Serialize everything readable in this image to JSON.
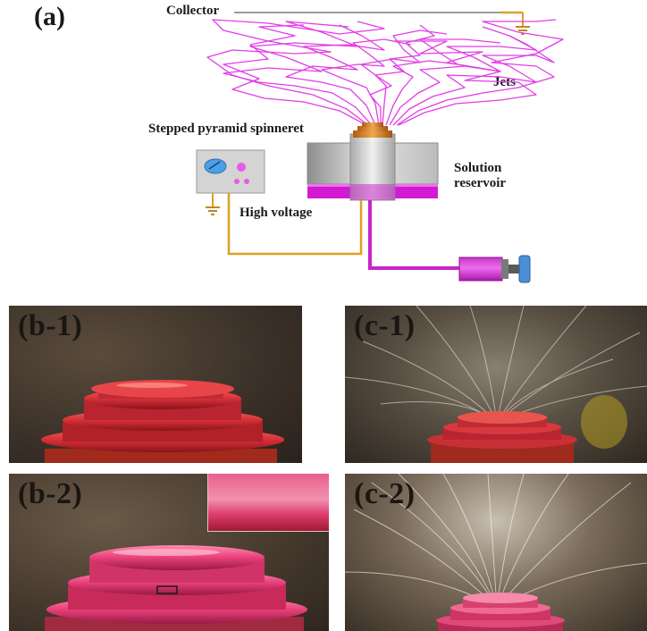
{
  "panel_a": {
    "label": "(a)",
    "collector": "Collector",
    "jets": "Jets",
    "spinneret": "Stepped pyramid spinneret",
    "reservoir_line1": "Solution",
    "reservoir_line2": "reservoir",
    "high_voltage": "High voltage"
  },
  "photos": {
    "b1": "(b-1)",
    "c1": "(c-1)",
    "b2": "(b-2)",
    "c2": "(c-2)"
  },
  "colors": {
    "jets": "#e23de6",
    "wire": "#e0a020",
    "solution": "#d21ad2",
    "spinneret": "#d9552a",
    "photo_dark": "#3a3028",
    "red_disk": "#d8303a",
    "pink_disk": "#e8407a"
  }
}
